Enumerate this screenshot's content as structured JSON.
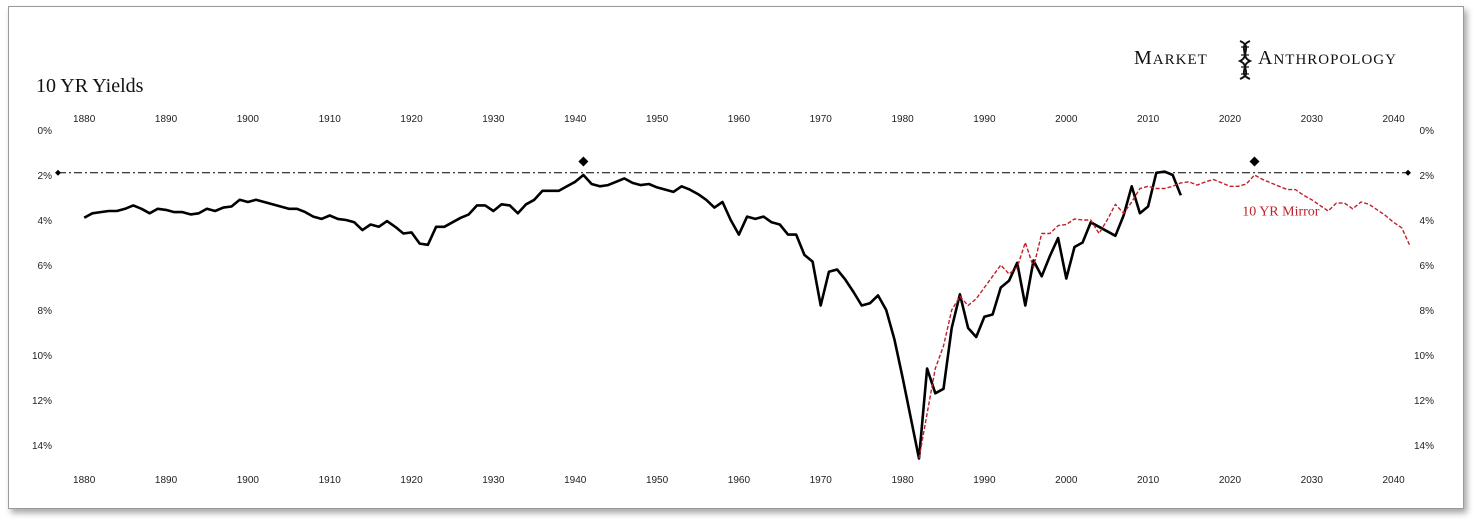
{
  "chart_data": {
    "type": "line",
    "title": "10 YR Yields",
    "brand": {
      "word1": "Market",
      "word2": "Anthropology",
      "logo_icon": "dna-helix-icon"
    },
    "x_ticks": [
      1880,
      1890,
      1900,
      1910,
      1920,
      1930,
      1940,
      1950,
      1960,
      1970,
      1980,
      1990,
      2000,
      2010,
      2020,
      2030,
      2040
    ],
    "y_ticks": [
      "0%",
      "2%",
      "4%",
      "6%",
      "8%",
      "10%",
      "12%",
      "14%"
    ],
    "y_tick_values": [
      0,
      2,
      4,
      6,
      8,
      10,
      12,
      14
    ],
    "xlim": [
      1879,
      2042
    ],
    "ylim": [
      0,
      14.8
    ],
    "y_inverted": true,
    "grid": false,
    "reference_line": {
      "y": 1.9,
      "style": "dash-dot",
      "color": "#000000"
    },
    "markers": [
      {
        "x": 1941,
        "y": 1.4,
        "shape": "diamond"
      },
      {
        "x": 2023,
        "y": 1.4,
        "shape": "diamond"
      }
    ],
    "annotation": {
      "text": "10 YR Mirror",
      "x": 2021.5,
      "y": 3.8,
      "color": "#c0202a"
    },
    "series": [
      {
        "style": "solid",
        "color": "#000000",
        "x": [
          1880,
          1880.5,
          1881,
          1882,
          1883,
          1884,
          1885,
          1886,
          1887,
          1888,
          1889,
          1890,
          1891,
          1892,
          1893,
          1894,
          1895,
          1896,
          1897,
          1898,
          1899,
          1900,
          1901,
          1902,
          1903,
          1904,
          1905,
          1906,
          1907,
          1908,
          1909,
          1910,
          1911,
          1912,
          1913,
          1914,
          1915,
          1916,
          1917,
          1918,
          1919,
          1920,
          1921,
          1922,
          1923,
          1924,
          1925,
          1926,
          1927,
          1928,
          1929,
          1930,
          1931,
          1932,
          1933,
          1934,
          1935,
          1936,
          1937,
          1938,
          1939,
          1940,
          1941,
          1942,
          1943,
          1944,
          1945,
          1946,
          1947,
          1948,
          1949,
          1950,
          1951,
          1952,
          1953,
          1954,
          1955,
          1956,
          1957,
          1958,
          1959,
          1960,
          1961,
          1962,
          1963,
          1964,
          1965,
          1966,
          1967,
          1968,
          1969,
          1970,
          1971,
          1972,
          1973,
          1974,
          1975,
          1976,
          1977,
          1978,
          1979,
          1980,
          1981,
          1982,
          1983,
          1984,
          1985,
          1986,
          1987,
          1988,
          1989,
          1990,
          1991,
          1992,
          1993,
          1994,
          1995,
          1996,
          1997,
          1998,
          1999,
          2000,
          2001,
          2002,
          2003,
          2004,
          2005,
          2006,
          2007,
          2008,
          2009,
          2010,
          2011,
          2012,
          2013,
          2014
        ],
        "y": [
          3.9,
          3.8,
          3.7,
          3.65,
          3.6,
          3.6,
          3.5,
          3.35,
          3.5,
          3.7,
          3.5,
          3.55,
          3.65,
          3.65,
          3.75,
          3.7,
          3.5,
          3.6,
          3.45,
          3.4,
          3.1,
          3.2,
          3.1,
          3.2,
          3.3,
          3.4,
          3.5,
          3.5,
          3.65,
          3.85,
          3.95,
          3.8,
          3.95,
          4.0,
          4.1,
          4.45,
          4.2,
          4.3,
          4.05,
          4.3,
          4.6,
          4.55,
          5.05,
          5.1,
          4.3,
          4.3,
          4.1,
          3.9,
          3.75,
          3.35,
          3.35,
          3.6,
          3.3,
          3.35,
          3.7,
          3.3,
          3.1,
          2.7,
          2.7,
          2.7,
          2.5,
          2.3,
          2.0,
          2.4,
          2.5,
          2.45,
          2.3,
          2.15,
          2.35,
          2.45,
          2.4,
          2.55,
          2.65,
          2.75,
          2.5,
          2.65,
          2.85,
          3.1,
          3.45,
          3.2,
          4.0,
          4.65,
          3.85,
          3.95,
          3.85,
          4.1,
          4.2,
          4.65,
          4.65,
          5.55,
          5.85,
          7.8,
          6.3,
          6.2,
          6.65,
          7.2,
          7.8,
          7.7,
          7.35,
          8.0,
          9.3,
          11.0,
          12.8,
          14.6,
          10.6,
          11.7,
          11.5,
          8.8,
          7.3,
          8.8,
          9.2,
          8.3,
          8.2,
          7.0,
          6.7,
          5.9,
          7.8,
          5.8,
          6.5,
          5.6,
          4.8,
          6.6,
          5.2,
          5.0,
          4.1,
          4.3,
          4.5,
          4.7,
          3.8,
          2.5,
          3.7,
          3.4,
          1.9,
          1.85,
          2.0,
          2.9
        ]
      },
      {
        "style": "dashed",
        "color": "#c0202a",
        "x": [
          1982,
          1983,
          1984,
          1985,
          1986,
          1987,
          1988,
          1989,
          1990,
          1991,
          1992,
          1993,
          1994,
          1995,
          1996,
          1997,
          1998,
          1999,
          2000,
          2001,
          2002,
          2003,
          2004,
          2005,
          2006,
          2007,
          2008,
          2009,
          2010,
          2011,
          2012,
          2013,
          2014,
          2015,
          2016,
          2017,
          2018,
          2019,
          2020,
          2021,
          2022,
          2023,
          2024,
          2025,
          2026,
          2027,
          2028,
          2029,
          2030,
          2031,
          2032,
          2033,
          2034,
          2035,
          2036,
          2037,
          2038,
          2039,
          2040,
          2041,
          2042
        ],
        "y": [
          14.6,
          12.6,
          10.6,
          9.6,
          8.0,
          7.4,
          7.8,
          7.5,
          7.0,
          6.5,
          6.0,
          6.4,
          6.1,
          5.0,
          6.1,
          4.6,
          4.6,
          4.25,
          4.2,
          3.95,
          4.0,
          4.0,
          4.6,
          4.0,
          3.3,
          3.7,
          3.2,
          2.6,
          2.5,
          2.6,
          2.6,
          2.5,
          2.35,
          2.3,
          2.45,
          2.3,
          2.2,
          2.35,
          2.5,
          2.5,
          2.4,
          2.0,
          2.2,
          2.35,
          2.5,
          2.65,
          2.65,
          2.9,
          3.1,
          3.35,
          3.6,
          3.25,
          3.25,
          3.5,
          3.2,
          3.3,
          3.55,
          3.8,
          4.1,
          4.35,
          5.15
        ]
      }
    ]
  }
}
